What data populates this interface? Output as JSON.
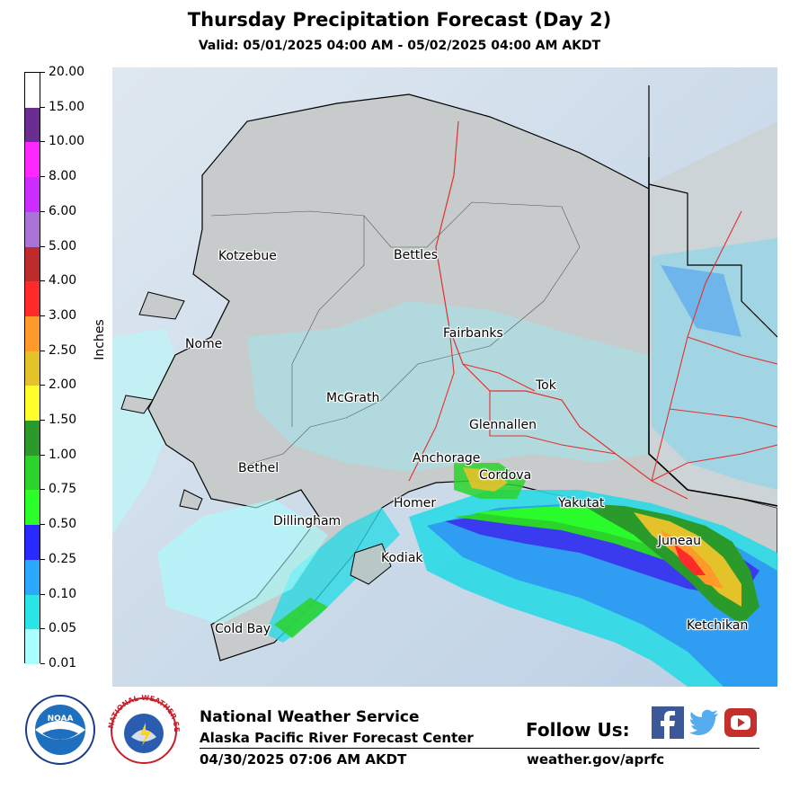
{
  "title": "Thursday Precipitation Forecast (Day 2)",
  "subtitle": "Valid: 05/01/2025 04:00 AM - 05/02/2025 04:00 AM AKDT",
  "colorbar": {
    "label": "Inches",
    "ticks": [
      "20.00",
      "15.00",
      "10.00",
      "8.00",
      "6.00",
      "5.00",
      "4.00",
      "3.00",
      "2.50",
      "2.00",
      "1.50",
      "1.00",
      "0.75",
      "0.50",
      "0.25",
      "0.10",
      "0.05",
      "0.01"
    ],
    "colors": [
      "#ffffff",
      "#6a2d91",
      "#ff27ff",
      "#cc2cff",
      "#a974d6",
      "#be2b2b",
      "#ff2a2a",
      "#ff9a2a",
      "#e4c22a",
      "#ffff2a",
      "#2a9a2a",
      "#2ad42a",
      "#2aff2a",
      "#2a2aff",
      "#2aa9ff",
      "#2ae5e5",
      "#a9ffff"
    ]
  },
  "cities": [
    {
      "name": "Kotzebue"
    },
    {
      "name": "Bettles"
    },
    {
      "name": "Nome"
    },
    {
      "name": "Fairbanks"
    },
    {
      "name": "McGrath"
    },
    {
      "name": "Tok"
    },
    {
      "name": "Glennallen"
    },
    {
      "name": "Anchorage"
    },
    {
      "name": "Bethel"
    },
    {
      "name": "Cordova"
    },
    {
      "name": "Homer"
    },
    {
      "name": "Yakutat"
    },
    {
      "name": "Dillingham"
    },
    {
      "name": "Juneau"
    },
    {
      "name": "Kodiak"
    },
    {
      "name": "Ketchikan"
    },
    {
      "name": "Cold Bay"
    }
  ],
  "footer": {
    "org": "National Weather Service",
    "center": "Alaska Pacific River Forecast Center",
    "issued": "04/30/2025 07:06 AM AKDT",
    "follow": "Follow Us:",
    "url": "weather.gov/aprfc"
  },
  "logos": {
    "noaa": "NOAA",
    "nws_ring": "NATIONAL WEATHER SERVICE"
  },
  "social_icons": [
    "facebook-icon",
    "twitter-icon",
    "youtube-icon"
  ]
}
